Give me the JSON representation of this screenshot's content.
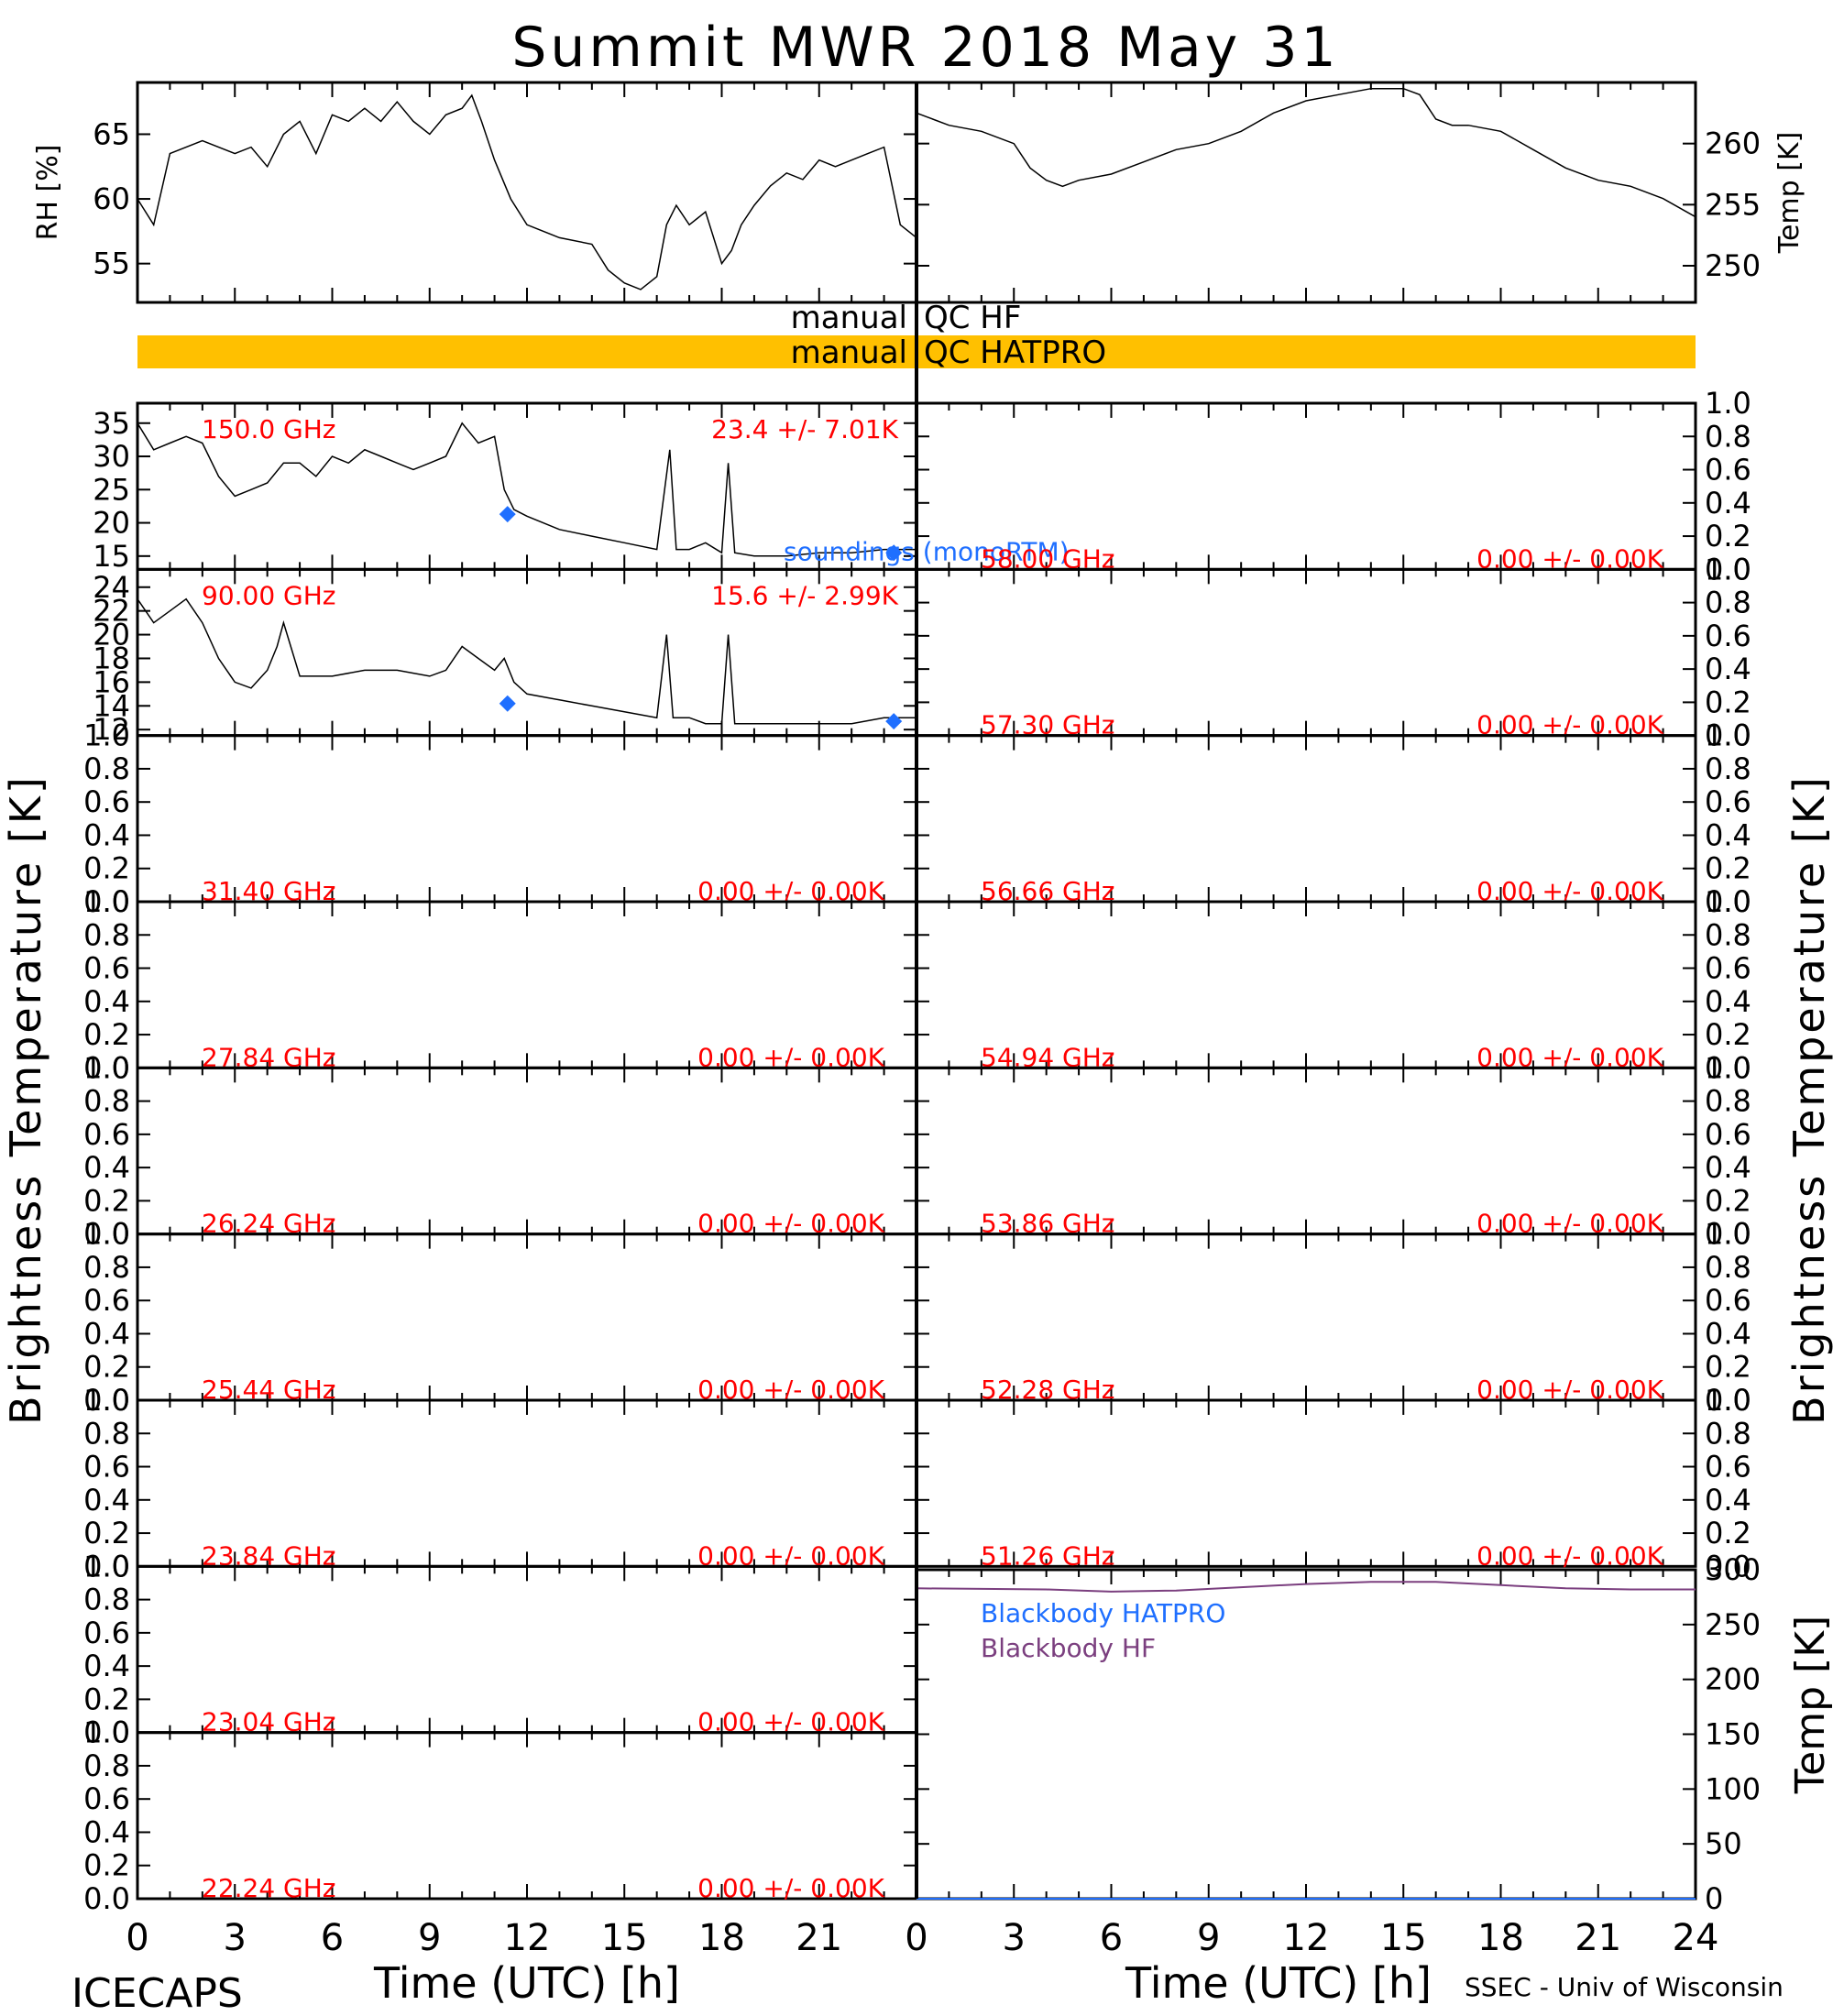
{
  "title": "Summit MWR 2018 May 31",
  "footer_left": "ICECAPS",
  "footer_right": "SSEC - Univ of Wisconsin",
  "xlabel": "Time (UTC) [h]",
  "ylabel_bt": "Brightness Temperature [K]",
  "colors": {
    "bad_text": "#ff0000",
    "sonde": "#1f6fff",
    "qc_bar": "#ffc000",
    "bb_hf": "#7b3f7f",
    "bb_hatpro": "#1f6fff",
    "trace": "#000000"
  },
  "x_ticks": [
    "0",
    "3",
    "6",
    "9",
    "12",
    "15",
    "18",
    "21",
    "24"
  ],
  "met": {
    "rh": {
      "label": "RH [%]",
      "ylim": [
        52,
        69
      ],
      "ticks": [
        "55",
        "60",
        "65"
      ]
    },
    "temp": {
      "label": "Temp [K]",
      "ylim": [
        247,
        265
      ],
      "ticks": [
        "250",
        "255",
        "260"
      ]
    }
  },
  "qc": {
    "label_left": "manual",
    "hf_label": "QC HF",
    "hatpro_label": "QC HATPRO"
  },
  "sonde_label": "soundings (monoRTM)",
  "blackbody": {
    "label_hatpro": "Blackbody HATPRO",
    "label_hf": "Blackbody HF",
    "ylabel": "Temp [K]",
    "ylim": [
      0,
      300
    ],
    "ticks": [
      "0",
      "50",
      "100",
      "150",
      "200",
      "250",
      "300"
    ]
  },
  "empty_ticks": [
    "0.0",
    "0.2",
    "0.4",
    "0.6",
    "0.8",
    "1.0"
  ],
  "left_panels": [
    {
      "freq": "150.0 GHz",
      "stat": "23.4 +/-  7.01K",
      "ylim": [
        13,
        38
      ],
      "ticks": [
        "15",
        "20",
        "25",
        "30",
        "35"
      ]
    },
    {
      "freq": "90.00 GHz",
      "stat": "15.6 +/-  2.99K",
      "ylim": [
        11.5,
        25.5
      ],
      "ticks": [
        "12",
        "14",
        "16",
        "18",
        "20",
        "22",
        "24"
      ]
    },
    {
      "freq": "31.40 GHz",
      "stat": "0.00 +/-  0.00K"
    },
    {
      "freq": "27.84 GHz",
      "stat": "0.00 +/-  0.00K"
    },
    {
      "freq": "26.24 GHz",
      "stat": "0.00 +/-  0.00K"
    },
    {
      "freq": "25.44 GHz",
      "stat": "0.00 +/-  0.00K"
    },
    {
      "freq": "23.84 GHz",
      "stat": "0.00 +/-  0.00K"
    },
    {
      "freq": "23.04 GHz",
      "stat": "0.00 +/-  0.00K"
    },
    {
      "freq": "22.24 GHz",
      "stat": "0.00 +/-  0.00K"
    }
  ],
  "right_panels": [
    {
      "freq": "58.00 GHz",
      "stat": "0.00 +/-  0.00K"
    },
    {
      "freq": "57.30 GHz",
      "stat": "0.00 +/-  0.00K"
    },
    {
      "freq": "56.66 GHz",
      "stat": "0.00 +/-  0.00K"
    },
    {
      "freq": "54.94 GHz",
      "stat": "0.00 +/-  0.00K"
    },
    {
      "freq": "53.86 GHz",
      "stat": "0.00 +/-  0.00K"
    },
    {
      "freq": "52.28 GHz",
      "stat": "0.00 +/-  0.00K"
    },
    {
      "freq": "51.26 GHz",
      "stat": "0.00 +/-  0.00K"
    }
  ],
  "chart_data": [
    {
      "type": "line",
      "ylabel": "RH [%]",
      "xlim": [
        0,
        24
      ],
      "ylim": [
        52,
        69
      ],
      "series": [
        {
          "x": [
            0,
            0.5,
            1,
            2,
            3,
            3.5,
            4,
            4.5,
            5,
            5.5,
            6,
            6.5,
            7,
            7.5,
            8,
            8.5,
            9,
            9.5,
            10,
            10.3,
            10.6,
            11,
            11.5,
            12,
            13,
            14,
            14.5,
            15,
            15.5,
            16,
            16.3,
            16.6,
            17,
            17.5,
            18,
            18.3,
            18.6,
            19,
            19.5,
            20,
            20.5,
            21,
            21.5,
            22,
            22.5,
            23,
            23.5,
            24
          ],
          "y": [
            60,
            58,
            63.5,
            64.5,
            63.5,
            64,
            62.5,
            65,
            66,
            63.5,
            66.5,
            66,
            67,
            66,
            67.5,
            66,
            65,
            66.5,
            67,
            68,
            66,
            63,
            60,
            58,
            57,
            56.5,
            54.5,
            53.5,
            53,
            54,
            58,
            59.5,
            58,
            59,
            55,
            56,
            58,
            59.5,
            61,
            62,
            61.5,
            63,
            62.5,
            63,
            63.5,
            64,
            58,
            57
          ]
        }
      ]
    },
    {
      "type": "line",
      "ylabel": "Temp [K]",
      "xlim": [
        0,
        24
      ],
      "ylim": [
        247,
        265
      ],
      "series": [
        {
          "x": [
            0,
            0.5,
            1,
            2,
            3,
            3.5,
            4,
            4.5,
            5,
            6,
            7,
            8,
            9,
            10,
            11,
            12,
            13,
            14,
            15,
            15.5,
            16,
            16.5,
            17,
            18,
            19,
            20,
            21,
            22,
            23,
            24
          ],
          "y": [
            262.5,
            262,
            261.5,
            261,
            260,
            258,
            257,
            256.5,
            257,
            257.5,
            258.5,
            259.5,
            260,
            261,
            262.5,
            263.5,
            264,
            264.5,
            264.5,
            264,
            262,
            261.5,
            261.5,
            261,
            259.5,
            258,
            257,
            256.5,
            255.5,
            254
          ]
        }
      ]
    },
    {
      "type": "line",
      "title": "150.0 GHz",
      "xlim": [
        0,
        24
      ],
      "ylim": [
        13,
        38
      ],
      "series": [
        {
          "x": [
            0,
            0.5,
            1,
            1.5,
            2,
            2.5,
            3,
            3.5,
            4,
            4.5,
            5,
            5.5,
            6,
            6.5,
            7,
            7.5,
            8,
            8.5,
            9,
            9.5,
            10,
            10.5,
            11,
            11.3,
            11.6,
            12,
            13,
            14,
            15,
            16,
            16.4,
            16.6,
            17,
            17.5,
            18,
            18.2,
            18.4,
            19,
            20,
            21,
            22,
            23,
            24
          ],
          "y": [
            35,
            31,
            32,
            33,
            32,
            27,
            24,
            25,
            26,
            29,
            29,
            27,
            30,
            29,
            31,
            30,
            29,
            28,
            29,
            30,
            35,
            32,
            33,
            25,
            22,
            21,
            19,
            18,
            17,
            16,
            31,
            16,
            16,
            17,
            15.5,
            29,
            15.5,
            15,
            15,
            15.5,
            15.5,
            16,
            16
          ]
        },
        {
          "name": "soundings (monoRTM)",
          "x": [
            11.4,
            23.3
          ],
          "y": [
            21.3,
            15.5
          ]
        }
      ]
    },
    {
      "type": "line",
      "title": "90.00 GHz",
      "xlim": [
        0,
        24
      ],
      "ylim": [
        11.5,
        25.5
      ],
      "series": [
        {
          "x": [
            0,
            0.5,
            1,
            1.5,
            2,
            2.5,
            3,
            3.5,
            4,
            4.3,
            4.5,
            5,
            6,
            7,
            8,
            9,
            9.5,
            10,
            10.5,
            11,
            11.3,
            11.6,
            12,
            13,
            14,
            15,
            16,
            16.3,
            16.5,
            17,
            17.5,
            18,
            18.2,
            18.4,
            19,
            20,
            21,
            22,
            23,
            24
          ],
          "y": [
            23,
            21,
            22,
            23,
            21,
            18,
            16,
            15.5,
            17,
            19,
            21,
            16.5,
            16.5,
            17,
            17,
            16.5,
            17,
            19,
            18,
            17,
            18,
            16,
            15,
            14.5,
            14,
            13.5,
            13,
            20,
            13,
            13,
            12.5,
            12.5,
            20,
            12.5,
            12.5,
            12.5,
            12.5,
            12.5,
            13,
            13
          ]
        },
        {
          "name": "soundings (monoRTM)",
          "x": [
            11.4,
            23.3
          ],
          "y": [
            14.2,
            12.7
          ]
        }
      ]
    },
    {
      "type": "line",
      "title": "Blackbody",
      "ylabel": "Temp [K]",
      "xlim": [
        0,
        24
      ],
      "ylim": [
        0,
        300
      ],
      "series": [
        {
          "name": "Blackbody HF",
          "x": [
            0,
            4,
            6,
            8,
            10,
            12,
            14,
            16,
            18,
            20,
            22,
            24
          ],
          "y": [
            283,
            282,
            280,
            281,
            284,
            287,
            289,
            289,
            286,
            283,
            282,
            282
          ]
        },
        {
          "name": "Blackbody HATPRO",
          "x": [
            0,
            24
          ],
          "y": [
            0,
            0
          ]
        }
      ]
    }
  ]
}
